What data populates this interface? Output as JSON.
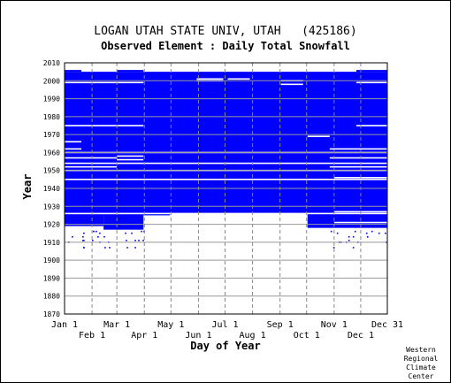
{
  "chart_data": {
    "type": "heatmap",
    "title": "LOGAN UTAH STATE UNIV, UTAH   (425186)",
    "subtitle": "Observed Element : Daily Total Snowfall",
    "xlabel": "Day of Year",
    "ylabel": "Year",
    "ylim": [
      1870,
      2010
    ],
    "yticks": [
      1870,
      1880,
      1890,
      1900,
      1910,
      1920,
      1930,
      1940,
      1950,
      1960,
      1970,
      1980,
      1990,
      2000,
      2010
    ],
    "xticks_upper": [
      {
        "label": "Jan 1",
        "day": 1
      },
      {
        "label": "Mar 1",
        "day": 60
      },
      {
        "label": "May 1",
        "day": 121
      },
      {
        "label": "Jul 1",
        "day": 182
      },
      {
        "label": "Sep 1",
        "day": 244
      },
      {
        "label": "Nov 1",
        "day": 305
      },
      {
        "label": "Dec 31",
        "day": 365
      }
    ],
    "xticks_lower": [
      {
        "label": "Feb 1",
        "day": 32
      },
      {
        "label": "Apr 1",
        "day": 91
      },
      {
        "label": "Jun 1",
        "day": 152
      },
      {
        "label": "Aug 1",
        "day": 213
      },
      {
        "label": "Oct 1",
        "day": 274
      },
      {
        "label": "Dec 1",
        "day": 335
      }
    ],
    "grid": true,
    "color": "#0000ff",
    "coverage_blocks": [
      {
        "day_start": 1,
        "day_end": 365,
        "year_start": 1926,
        "year_end": 2005
      },
      {
        "day_start": 1,
        "day_end": 45,
        "year_start": 1919,
        "year_end": 1926
      },
      {
        "day_start": 45,
        "day_end": 90,
        "year_start": 1917,
        "year_end": 1926
      },
      {
        "day_start": 90,
        "day_end": 120,
        "year_start": 1925,
        "year_end": 1926
      },
      {
        "day_start": 275,
        "day_end": 365,
        "year_start": 1918,
        "year_end": 1926
      },
      {
        "day_start": 1,
        "day_end": 20,
        "year_start": 2005,
        "year_end": 2006
      },
      {
        "day_start": 60,
        "day_end": 90,
        "year_start": 2005,
        "year_end": 2006
      },
      {
        "day_start": 330,
        "day_end": 365,
        "year_start": 2005,
        "year_end": 2006
      }
    ],
    "gap_rows": [
      {
        "day_start": 1,
        "day_end": 365,
        "year": 1960
      },
      {
        "day_start": 1,
        "day_end": 365,
        "year": 1954
      },
      {
        "day_start": 1,
        "day_end": 365,
        "year": 1950
      },
      {
        "day_start": 1,
        "day_end": 60,
        "year": 1957
      },
      {
        "day_start": 1,
        "day_end": 60,
        "year": 1952
      },
      {
        "day_start": 1,
        "day_end": 20,
        "year": 1966
      },
      {
        "day_start": 1,
        "day_end": 20,
        "year": 1962
      },
      {
        "day_start": 1,
        "day_end": 365,
        "year": 1926
      },
      {
        "day_start": 300,
        "day_end": 365,
        "year": 1957
      },
      {
        "day_start": 300,
        "day_end": 365,
        "year": 1952
      },
      {
        "day_start": 305,
        "day_end": 365,
        "year": 1946
      },
      {
        "day_start": 305,
        "day_end": 365,
        "year": 1927
      },
      {
        "day_start": 305,
        "day_end": 365,
        "year": 1921
      },
      {
        "day_start": 60,
        "day_end": 90,
        "year": 1956
      },
      {
        "day_start": 60,
        "day_end": 90,
        "year": 1958
      },
      {
        "day_start": 1,
        "day_end": 90,
        "year": 1975
      },
      {
        "day_start": 1,
        "day_end": 90,
        "year": 1999
      },
      {
        "day_start": 150,
        "day_end": 180,
        "year": 2001
      },
      {
        "day_start": 150,
        "day_end": 180,
        "year": 2000
      },
      {
        "day_start": 185,
        "day_end": 210,
        "year": 2001
      },
      {
        "day_start": 245,
        "day_end": 270,
        "year": 2000
      },
      {
        "day_start": 245,
        "day_end": 270,
        "year": 1998
      },
      {
        "day_start": 275,
        "day_end": 300,
        "year": 1969
      },
      {
        "day_start": 330,
        "day_end": 365,
        "year": 1975
      },
      {
        "day_start": 330,
        "day_end": 365,
        "year": 1999
      },
      {
        "day_start": 300,
        "day_end": 365,
        "year": 1962
      },
      {
        "day_start": 1,
        "day_end": 365,
        "year": 1945
      }
    ],
    "footer_label": [
      "Western",
      "Regional",
      "Climate",
      "Center"
    ]
  }
}
